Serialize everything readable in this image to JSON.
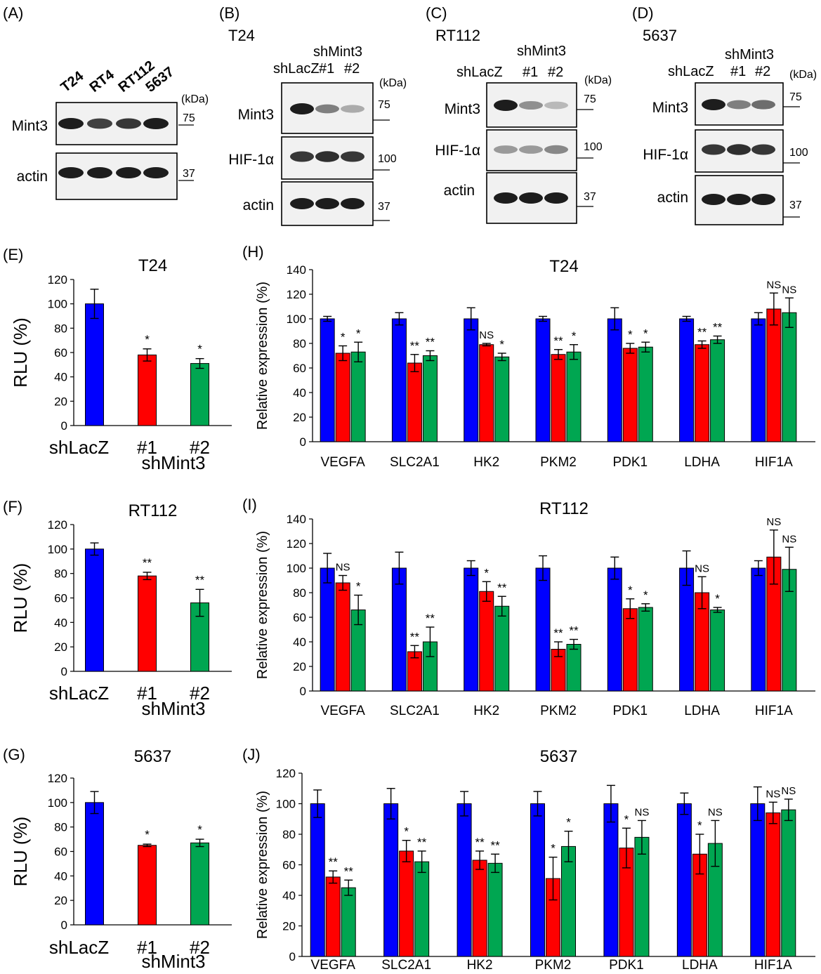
{
  "colors": {
    "shLacZ": "#0000ff",
    "sh1": "#ff0000",
    "sh2": "#00a651",
    "blot_bg": "#f1f1f1",
    "band": "#111111"
  },
  "blots": [
    {
      "panel": "(A)",
      "cell": "",
      "lanes": [
        "T24",
        "RT4",
        "RT112",
        "5637"
      ],
      "kda_label": "(kDa)",
      "rows": [
        {
          "label": "Mint3",
          "markers": [
            "75"
          ]
        },
        {
          "label": "actin",
          "markers": [
            "37"
          ]
        }
      ]
    },
    {
      "panel": "(B)",
      "cell": "T24",
      "group_label": "shMint3",
      "lanes": [
        "shLacZ",
        "#1",
        "#2"
      ],
      "kda_label": "(kDa)",
      "rows": [
        {
          "label": "Mint3",
          "markers": [
            "75"
          ]
        },
        {
          "label": "HIF-1α",
          "markers": [
            "100"
          ]
        },
        {
          "label": "actin",
          "markers": [
            "37"
          ]
        }
      ]
    },
    {
      "panel": "(C)",
      "cell": "RT112",
      "group_label": "shMint3",
      "lanes": [
        "shLacZ",
        "#1",
        "#2"
      ],
      "kda_label": "(kDa)",
      "rows": [
        {
          "label": "Mint3",
          "markers": [
            "75"
          ]
        },
        {
          "label": "HIF-1α",
          "markers": [
            "100"
          ]
        },
        {
          "label": "actin",
          "markers": [
            "37"
          ]
        }
      ]
    },
    {
      "panel": "(D)",
      "cell": "5637",
      "group_label": "shMint3",
      "lanes": [
        "shLacZ",
        "#1",
        "#2"
      ],
      "kda_label": "(kDa)",
      "rows": [
        {
          "label": "Mint3",
          "markers": [
            "75"
          ]
        },
        {
          "label": "HIF-1α",
          "markers": [
            "100"
          ]
        },
        {
          "label": "actin",
          "markers": [
            "37"
          ]
        }
      ]
    }
  ],
  "chart_data": [
    {
      "panel": "(E)",
      "type": "bar",
      "title": "T24",
      "ylabel": "RLU (%)",
      "ylim": [
        0,
        120
      ],
      "yticks": [
        "0",
        "20",
        "40",
        "60",
        "80",
        "100",
        "120"
      ],
      "categories": [
        "shLacZ",
        "#1",
        "#2"
      ],
      "group_label": "shMint3",
      "values": [
        100,
        58,
        51
      ],
      "errors": [
        12,
        5,
        4
      ],
      "sig": [
        "",
        "*",
        "*"
      ]
    },
    {
      "panel": "(F)",
      "type": "bar",
      "title": "RT112",
      "ylabel": "RLU (%)",
      "ylim": [
        0,
        120
      ],
      "yticks": [
        "0",
        "20",
        "40",
        "60",
        "80",
        "100",
        "120"
      ],
      "categories": [
        "shLacZ",
        "#1",
        "#2"
      ],
      "group_label": "shMint3",
      "values": [
        100,
        78,
        56
      ],
      "errors": [
        5,
        3,
        11
      ],
      "sig": [
        "",
        "**",
        "**"
      ]
    },
    {
      "panel": "(G)",
      "type": "bar",
      "title": "5637",
      "ylabel": "RLU (%)",
      "ylim": [
        0,
        120
      ],
      "yticks": [
        "0",
        "20",
        "40",
        "60",
        "80",
        "100",
        "120"
      ],
      "categories": [
        "shLacZ",
        "#1",
        "#2"
      ],
      "group_label": "shMint3",
      "values": [
        100,
        65,
        67
      ],
      "errors": [
        9,
        1,
        3
      ],
      "sig": [
        "",
        "*",
        "*"
      ]
    },
    {
      "panel": "(H)",
      "type": "bar",
      "title": "T24",
      "ylabel": "Relative expression (%)",
      "ylim": [
        0,
        140
      ],
      "yticks": [
        "0",
        "20",
        "40",
        "60",
        "80",
        "100",
        "120",
        "140"
      ],
      "categories": [
        "VEGFA",
        "SLC2A1",
        "HK2",
        "PKM2",
        "PDK1",
        "LDHA",
        "HIF1A"
      ],
      "series": [
        {
          "values": [
            100,
            100,
            100,
            100,
            100,
            100,
            100
          ],
          "errors": [
            2,
            5,
            9,
            2,
            9,
            2,
            5
          ],
          "sig": [
            "",
            "",
            "",
            "",
            "",
            "",
            ""
          ]
        },
        {
          "values": [
            72,
            64,
            79,
            71,
            76,
            79,
            108
          ],
          "errors": [
            6,
            7,
            1,
            4,
            4,
            3,
            13
          ],
          "sig": [
            "*",
            "**",
            "NS",
            "**",
            "*",
            "**",
            "NS"
          ]
        },
        {
          "values": [
            73,
            70,
            69,
            73,
            77,
            83,
            105
          ],
          "errors": [
            8,
            4,
            3,
            6,
            4,
            3,
            12
          ],
          "sig": [
            "*",
            "**",
            "*",
            "*",
            "*",
            "**",
            "NS"
          ]
        }
      ]
    },
    {
      "panel": "(I)",
      "type": "bar",
      "title": "RT112",
      "ylabel": "Relative expression (%)",
      "ylim": [
        0,
        140
      ],
      "yticks": [
        "0",
        "20",
        "40",
        "60",
        "80",
        "100",
        "120",
        "140"
      ],
      "categories": [
        "VEGFA",
        "SLC2A1",
        "HK2",
        "PKM2",
        "PDK1",
        "LDHA",
        "HIF1A"
      ],
      "series": [
        {
          "values": [
            100,
            100,
            100,
            100,
            100,
            100,
            100
          ],
          "errors": [
            12,
            13,
            6,
            10,
            9,
            14,
            6
          ],
          "sig": [
            "",
            "",
            "",
            "",
            "",
            "",
            ""
          ]
        },
        {
          "values": [
            88,
            32,
            81,
            34,
            67,
            80,
            109
          ],
          "errors": [
            6,
            5,
            8,
            6,
            8,
            13,
            22
          ],
          "sig": [
            "NS",
            "**",
            "*",
            "**",
            "*",
            "NS",
            "NS"
          ]
        },
        {
          "values": [
            66,
            40,
            69,
            38,
            68,
            66,
            99
          ],
          "errors": [
            12,
            12,
            8,
            4,
            3,
            2,
            18
          ],
          "sig": [
            "*",
            "**",
            "**",
            "**",
            "*",
            "*",
            "NS"
          ]
        }
      ]
    },
    {
      "panel": "(J)",
      "type": "bar",
      "title": "5637",
      "ylabel": "Relative expression (%)",
      "ylim": [
        0,
        120
      ],
      "yticks": [
        "0",
        "20",
        "40",
        "60",
        "80",
        "100",
        "120"
      ],
      "categories": [
        "VEGFA",
        "SLC2A1",
        "HK2",
        "PKM2",
        "PDK1",
        "LDHA",
        "HIF1A"
      ],
      "series": [
        {
          "values": [
            100,
            100,
            100,
            100,
            100,
            100,
            100
          ],
          "errors": [
            9,
            10,
            8,
            8,
            12,
            7,
            11
          ],
          "sig": [
            "",
            "",
            "",
            "",
            "",
            "",
            ""
          ]
        },
        {
          "values": [
            52,
            69,
            63,
            51,
            71,
            67,
            94
          ],
          "errors": [
            4,
            7,
            6,
            14,
            13,
            13,
            7
          ],
          "sig": [
            "**",
            "*",
            "**",
            "*",
            "*",
            "*",
            "NS"
          ]
        },
        {
          "values": [
            45,
            62,
            61,
            72,
            78,
            74,
            96
          ],
          "errors": [
            5,
            7,
            6,
            10,
            11,
            15,
            7
          ],
          "sig": [
            "**",
            "**",
            "**",
            "*",
            "NS",
            "NS",
            "NS"
          ]
        }
      ]
    }
  ]
}
